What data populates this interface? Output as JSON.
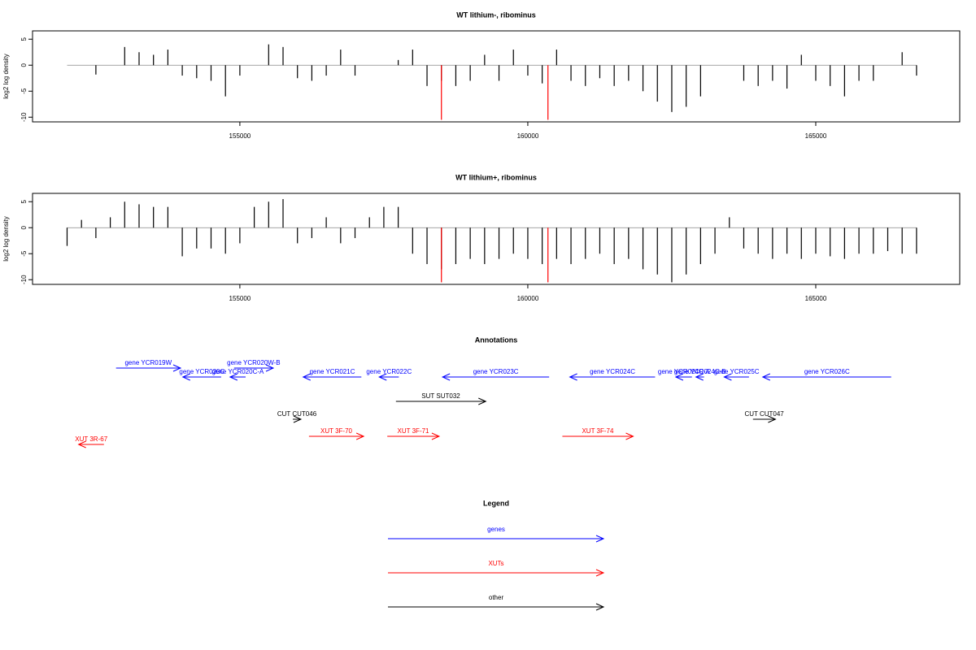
{
  "chart_data": [
    {
      "type": "bar",
      "title": "WT lithium-, ribominus",
      "ylabel": "log2 log density",
      "color": "#000000",
      "xlim": [
        151400,
        167500
      ],
      "xticks": [
        155000,
        160000,
        165000
      ],
      "ylim": [
        -10.9,
        6.6
      ],
      "yticks": [
        -10,
        -5,
        0,
        5
      ],
      "x": [
        152000,
        152250,
        152500,
        152750,
        153000,
        153250,
        153500,
        153750,
        154000,
        154250,
        154500,
        154750,
        155000,
        155250,
        155500,
        155750,
        156000,
        156250,
        156500,
        156750,
        157000,
        157250,
        157500,
        157750,
        158000,
        158250,
        158500,
        158750,
        159000,
        159250,
        159500,
        159750,
        160000,
        160250,
        160500,
        160750,
        161000,
        161250,
        161500,
        161750,
        162000,
        162250,
        162500,
        162750,
        163000,
        163250,
        163500,
        163750,
        164000,
        164250,
        164500,
        164750,
        165000,
        165250,
        165500,
        165750,
        166000,
        166250,
        166500,
        166750
      ],
      "values": [
        0,
        0,
        -1.8,
        0,
        3.5,
        2.5,
        2,
        3,
        -2,
        -2.5,
        -3,
        -6,
        -2,
        0,
        4,
        3.5,
        -2.5,
        -3,
        -2,
        3,
        -2,
        0,
        0,
        1,
        3,
        -4,
        -3,
        -4,
        -3,
        2,
        -3,
        3,
        -2,
        -3.5,
        3,
        -3,
        -4,
        -2.5,
        -4,
        -3,
        -5,
        -7,
        -9,
        -8,
        -6,
        0,
        0,
        -3,
        -4,
        -3,
        -4.5,
        2,
        -3,
        -4,
        -6,
        -3,
        -3,
        0,
        2.5,
        -2
      ],
      "highlight": {
        "color": "#ff0000",
        "x": [
          158500,
          160350
        ],
        "values": [
          -10.5,
          -10.5
        ]
      }
    },
    {
      "type": "bar",
      "title": "WT lithium+, ribominus",
      "ylabel": "log2 log density",
      "color": "#000000",
      "xlim": [
        151400,
        167500
      ],
      "xticks": [
        155000,
        160000,
        165000
      ],
      "ylim": [
        -10.9,
        6.6
      ],
      "yticks": [
        -10,
        -5,
        0,
        5
      ],
      "x": [
        152000,
        152250,
        152500,
        152750,
        153000,
        153250,
        153500,
        153750,
        154000,
        154250,
        154500,
        154750,
        155000,
        155250,
        155500,
        155750,
        156000,
        156250,
        156500,
        156750,
        157000,
        157250,
        157500,
        157750,
        158000,
        158250,
        158500,
        158750,
        159000,
        159250,
        159500,
        159750,
        160000,
        160250,
        160500,
        160750,
        161000,
        161250,
        161500,
        161750,
        162000,
        162250,
        162500,
        162750,
        163000,
        163250,
        163500,
        163750,
        164000,
        164250,
        164500,
        164750,
        165000,
        165250,
        165500,
        165750,
        166000,
        166250,
        166500,
        166750
      ],
      "values": [
        -3.5,
        1.5,
        -2,
        2,
        5,
        4.5,
        4,
        4,
        -5.5,
        -4,
        -4,
        -5,
        -3,
        4,
        5,
        5.5,
        -3,
        -2,
        2,
        -3,
        -2,
        2,
        4,
        4,
        -5,
        -7,
        -8,
        -7,
        -6,
        -7,
        -6,
        -5,
        -6,
        -7,
        -6,
        -7,
        -6,
        -5,
        -7,
        -6,
        -8,
        -9,
        -10.5,
        -9,
        -7,
        -5,
        2,
        -4,
        -5,
        -6,
        -5,
        -6,
        -5,
        -5.5,
        -6,
        -5,
        -5,
        -4.5,
        -5,
        -5
      ],
      "highlight": {
        "color": "#ff0000",
        "x": [
          158500,
          160350
        ],
        "values": [
          -10.5,
          -10.5
        ]
      }
    }
  ],
  "annotations": {
    "title": "Annotations",
    "items": [
      {
        "label": "gene YCR019W",
        "start": 152850,
        "end": 153970,
        "strand": "+",
        "color": "#0000ff"
      },
      {
        "label": "gene YCR020C",
        "start": 154010,
        "end": 154675,
        "strand": "-",
        "color": "#0000ff"
      },
      {
        "label": "gene YCR020C-A",
        "start": 154830,
        "end": 155100,
        "strand": "-",
        "color": "#0000ff"
      },
      {
        "label": "gene YCR020W-B",
        "start": 154900,
        "end": 155580,
        "strand": "+",
        "color": "#0000ff"
      },
      {
        "label": "gene YCR021C",
        "start": 156100,
        "end": 157110,
        "strand": "-",
        "color": "#0000ff"
      },
      {
        "label": "gene YCR022C",
        "start": 157420,
        "end": 157760,
        "strand": "-",
        "color": "#0000ff"
      },
      {
        "label": "gene YCR023C",
        "start": 158520,
        "end": 160370,
        "strand": "-",
        "color": "#0000ff"
      },
      {
        "label": "gene YCR024C",
        "start": 160730,
        "end": 162210,
        "strand": "-",
        "color": "#0000ff"
      },
      {
        "label": "gene YCR024C-A",
        "start": 162570,
        "end": 162850,
        "strand": "-",
        "color": "#0000ff"
      },
      {
        "label": "gene YCR024C-B",
        "start": 162920,
        "end": 163060,
        "strand": "-",
        "color": "#0000ff"
      },
      {
        "label": "gene YCR025C",
        "start": 163410,
        "end": 163840,
        "strand": "-",
        "color": "#0000ff"
      },
      {
        "label": "gene YCR026C",
        "start": 164080,
        "end": 166310,
        "strand": "-",
        "color": "#0000ff"
      },
      {
        "label": "SUT SUT032",
        "start": 157710,
        "end": 159270,
        "strand": "+",
        "color": "#000000"
      },
      {
        "label": "CUT CUT046",
        "start": 155920,
        "end": 156060,
        "strand": "+",
        "color": "#000000"
      },
      {
        "label": "CUT CUT047",
        "start": 163910,
        "end": 164300,
        "strand": "+",
        "color": "#000000"
      },
      {
        "label": "XUT 3F-70",
        "start": 156200,
        "end": 157150,
        "strand": "+",
        "color": "#ff0000"
      },
      {
        "label": "XUT 3F-71",
        "start": 157560,
        "end": 158460,
        "strand": "+",
        "color": "#ff0000"
      },
      {
        "label": "XUT 3F-74",
        "start": 160600,
        "end": 161830,
        "strand": "+",
        "color": "#ff0000"
      },
      {
        "label": "XUT 3R-67",
        "start": 152200,
        "end": 152640,
        "strand": "-",
        "color": "#ff0000"
      }
    ]
  },
  "legend": {
    "title": "Legend",
    "entries": [
      {
        "label": "genes",
        "color": "#0000ff"
      },
      {
        "label": "XUTs",
        "color": "#ff0000"
      },
      {
        "label": "other",
        "color": "#000000"
      }
    ]
  }
}
